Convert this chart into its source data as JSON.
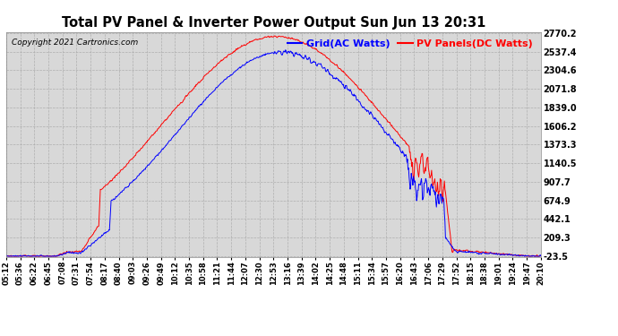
{
  "title": "Total PV Panel & Inverter Power Output Sun Jun 13 20:31",
  "copyright": "Copyright 2021 Cartronics.com",
  "legend_grid": "Grid(AC Watts)",
  "legend_pv": "PV Panels(DC Watts)",
  "grid_color": "blue",
  "pv_color": "red",
  "background_color": "#ffffff",
  "plot_bg_color": "#e8e8e8",
  "yticks": [
    2770.2,
    2537.4,
    2304.6,
    2071.8,
    1839.0,
    1606.2,
    1373.3,
    1140.5,
    907.7,
    674.9,
    442.1,
    209.3,
    -23.5
  ],
  "ymin": -23.5,
  "ymax": 2770.2,
  "xtick_labels": [
    "05:12",
    "05:36",
    "06:22",
    "06:45",
    "07:08",
    "07:31",
    "07:54",
    "08:17",
    "08:40",
    "09:03",
    "09:26",
    "09:49",
    "10:12",
    "10:35",
    "10:58",
    "11:21",
    "11:44",
    "12:07",
    "12:30",
    "12:53",
    "13:16",
    "13:39",
    "14:02",
    "14:25",
    "14:48",
    "15:11",
    "15:34",
    "15:57",
    "16:20",
    "16:43",
    "17:06",
    "17:29",
    "17:52",
    "18:15",
    "18:38",
    "19:01",
    "19:24",
    "19:47",
    "20:10"
  ]
}
